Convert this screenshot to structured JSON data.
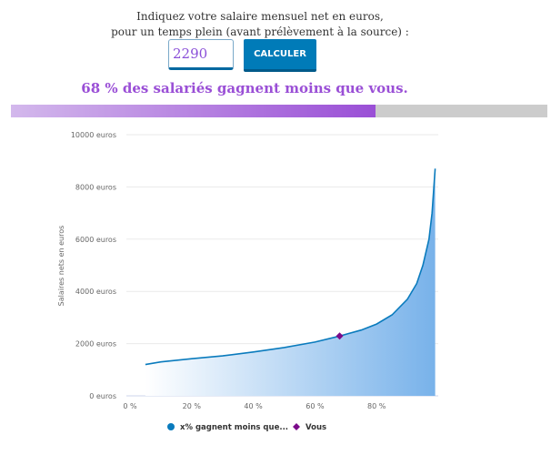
{
  "form": {
    "prompt_line1": "Indiquez votre salaire mensuel net en euros,",
    "prompt_line2": "pour un temps plein (avant prélèvement à la source) :",
    "salary_value": "2290",
    "submit_label": "CALCULER"
  },
  "result": {
    "text": "68 % des salariés gagnent moins que vous.",
    "percent": 68
  },
  "colors": {
    "accent": "#9a4fd6",
    "line": "#0a7bbd",
    "marker": "#7b0a8a",
    "button": "#007bb8"
  },
  "chart_data": {
    "type": "area",
    "xlabel": "",
    "ylabel": "Salaires nets en euros",
    "xlim": [
      0,
      100
    ],
    "ylim": [
      0,
      10000
    ],
    "x_ticks": [
      "0 %",
      "20 %",
      "40 %",
      "60 %",
      "80 %"
    ],
    "x_tick_values": [
      0,
      20,
      40,
      60,
      80
    ],
    "y_ticks": [
      "0 euros",
      "2000 euros",
      "4000 euros",
      "6000 euros",
      "8000 euros",
      "10000 euros"
    ],
    "y_tick_values": [
      0,
      2000,
      4000,
      6000,
      8000,
      10000
    ],
    "grid": true,
    "legend_position": "bottom",
    "series": [
      {
        "name": "x% gagnent moins que...",
        "x": [
          5,
          10,
          20,
          30,
          40,
          50,
          60,
          68,
          75,
          80,
          85,
          90,
          93,
          95,
          97,
          98,
          99
        ],
        "values": [
          1200,
          1300,
          1420,
          1530,
          1680,
          1850,
          2060,
          2290,
          2520,
          2750,
          3100,
          3700,
          4300,
          5000,
          6000,
          7000,
          8700
        ]
      },
      {
        "name": "Vous",
        "x": [
          68
        ],
        "values": [
          2290
        ]
      }
    ]
  }
}
